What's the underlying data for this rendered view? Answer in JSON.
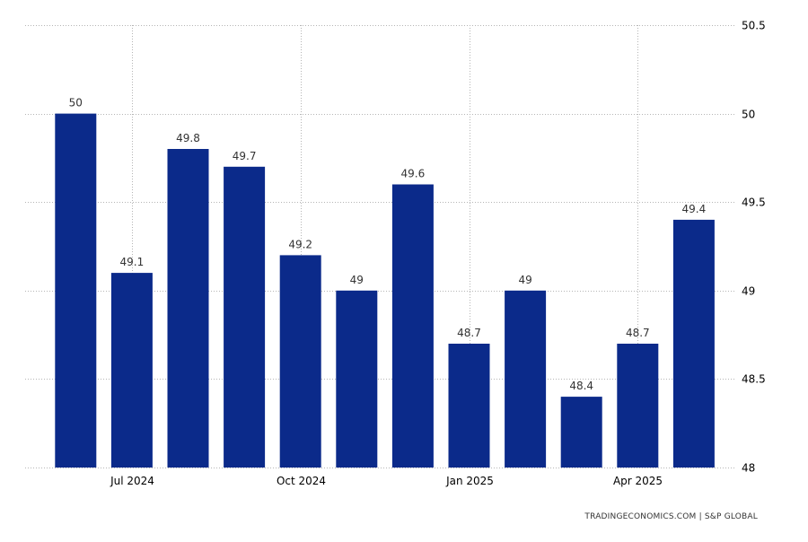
{
  "source": "TRADINGECONOMICS.COM | S&P GLOBAL",
  "colors": {
    "bar": "#0b2a8a",
    "grid": "#b5b5b5",
    "text": "#333333"
  },
  "chart_data": {
    "type": "bar",
    "categories": [
      "2024-06",
      "2024-07",
      "2024-08",
      "2024-09",
      "2024-10",
      "2024-11",
      "2024-12",
      "2025-01",
      "2025-02",
      "2025-03",
      "2025-04",
      "2025-05"
    ],
    "values": [
      50,
      49.1,
      49.8,
      49.7,
      49.2,
      49,
      49.6,
      48.7,
      49,
      48.4,
      48.7,
      49.4
    ],
    "data_labels": [
      "50",
      "49.1",
      "49.8",
      "49.7",
      "49.2",
      "49",
      "49.6",
      "48.7",
      "49",
      "48.4",
      "48.7",
      "49.4"
    ],
    "x_tick_labels": [
      {
        "category": "2024-07",
        "label": "Jul 2024"
      },
      {
        "category": "2024-10",
        "label": "Oct 2024"
      },
      {
        "category": "2025-01",
        "label": "Jan 2025"
      },
      {
        "category": "2025-04",
        "label": "Apr 2025"
      }
    ],
    "y_ticks": [
      48,
      48.5,
      49,
      49.5,
      50,
      50.5
    ],
    "y_tick_labels": [
      "48",
      "48.5",
      "49",
      "49.5",
      "50",
      "50.5"
    ],
    "ylim": [
      48,
      50.5
    ],
    "y_axis_side": "right",
    "grid": true,
    "title": "",
    "xlabel": "",
    "ylabel": ""
  }
}
